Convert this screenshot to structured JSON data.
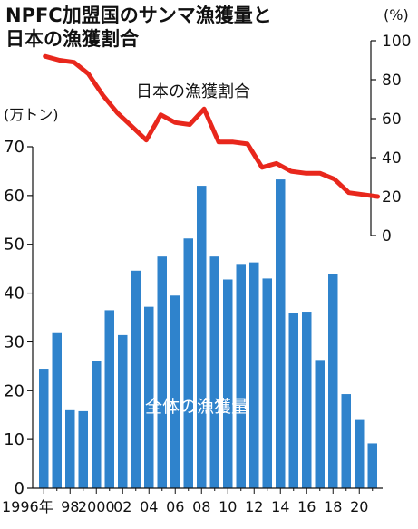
{
  "title_line1": "NPFC加盟国のサンマ漁獲量と",
  "title_line2": "日本の漁獲割合",
  "left_unit": "(万トン)",
  "right_unit": "(%)",
  "line_label": "日本の漁獲割合",
  "bar_label": "全体の漁獲量",
  "chart_data": {
    "type": "bar+line",
    "years": [
      1996,
      1997,
      1998,
      1999,
      2000,
      2001,
      2002,
      2003,
      2004,
      2005,
      2006,
      2007,
      2008,
      2009,
      2010,
      2011,
      2012,
      2013,
      2014,
      2015,
      2016,
      2017,
      2018,
      2019,
      2020,
      2021
    ],
    "x_tick_labels": [
      "1996年",
      "98",
      "2000",
      "02",
      "04",
      "06",
      "08",
      "10",
      "12",
      "14",
      "16",
      "18",
      "20"
    ],
    "bars": {
      "name": "全体の漁獲量",
      "unit": "万トン",
      "values": [
        24.5,
        31.8,
        16,
        15.8,
        26,
        36.5,
        31.4,
        44.6,
        37.2,
        47.5,
        39.5,
        51.2,
        62,
        47.5,
        42.8,
        45.8,
        46.3,
        43,
        63.3,
        36,
        36.2,
        26.3,
        44,
        19.3,
        14,
        9.2
      ],
      "ylim": [
        0,
        70
      ],
      "yticks": [
        "0",
        "10",
        "20",
        "30",
        "40",
        "50",
        "60",
        "70"
      ],
      "color": "#2f83cc"
    },
    "line": {
      "name": "日本の漁獲割合",
      "unit": "%",
      "values": [
        92,
        90,
        89,
        83,
        72,
        63,
        56,
        49,
        62,
        58,
        57,
        65,
        48,
        48,
        47,
        35,
        37,
        33,
        32,
        32,
        29,
        22,
        21,
        20
      ],
      "x_start_year": 1996.1,
      "x_end_year": 2021.4,
      "ylim": [
        0,
        100
      ],
      "yticks": [
        "0",
        "20",
        "40",
        "60",
        "80",
        "100"
      ],
      "color": "#e8271c"
    }
  }
}
